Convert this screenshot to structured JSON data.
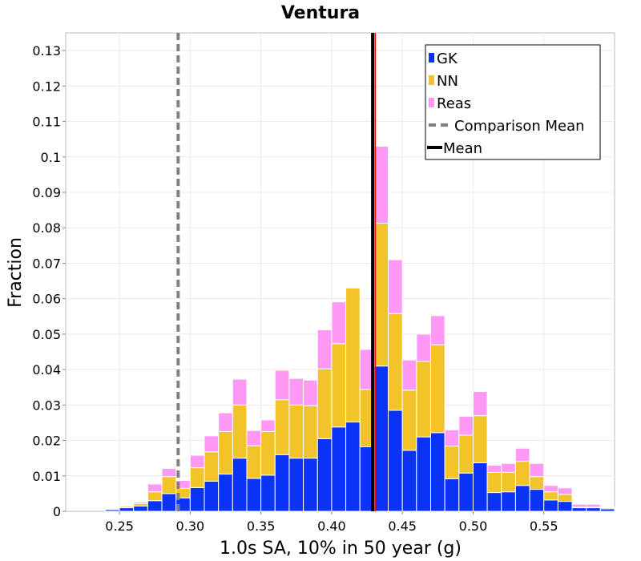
{
  "chart_data": {
    "type": "bar",
    "stacked": true,
    "title": "Ventura",
    "xlabel": "1.0s SA, 10% in 50 year (g)",
    "ylabel": "Fraction",
    "xlim": [
      0.212,
      0.6
    ],
    "ylim": [
      0,
      0.135
    ],
    "bin_width": 0.01,
    "x_ticks": [
      "0.25",
      "0.30",
      "0.35",
      "0.40",
      "0.45",
      "0.50",
      "0.55"
    ],
    "y_ticks": [
      "0",
      "0.01",
      "0.02",
      "0.03",
      "0.04",
      "0.05",
      "0.06",
      "0.07",
      "0.08",
      "0.09",
      "0.1",
      "0.11",
      "0.12",
      "0.13"
    ],
    "grid": true,
    "legend_position": "top-right",
    "x": [
      0.245,
      0.255,
      0.265,
      0.275,
      0.285,
      0.295,
      0.305,
      0.315,
      0.325,
      0.335,
      0.345,
      0.355,
      0.365,
      0.375,
      0.385,
      0.395,
      0.405,
      0.415,
      0.425,
      0.435,
      0.445,
      0.455,
      0.465,
      0.475,
      0.485,
      0.495,
      0.505,
      0.515,
      0.525,
      0.535,
      0.545,
      0.555,
      0.565,
      0.575,
      0.585,
      0.595
    ],
    "series": [
      {
        "name": "GK",
        "color": "#0a33f5",
        "values": [
          0.0005,
          0.001,
          0.0015,
          0.003,
          0.005,
          0.0038,
          0.0067,
          0.0085,
          0.0105,
          0.015,
          0.0093,
          0.0102,
          0.016,
          0.015,
          0.015,
          0.0205,
          0.0238,
          0.0252,
          0.0182,
          0.041,
          0.0285,
          0.0172,
          0.021,
          0.0222,
          0.0092,
          0.0108,
          0.0137,
          0.0053,
          0.0055,
          0.0073,
          0.0062,
          0.0032,
          0.0028,
          0.001,
          0.001,
          0.0007
        ]
      },
      {
        "name": "NN",
        "color": "#f2c42a",
        "values": [
          0.0002,
          0.0004,
          0.0007,
          0.0025,
          0.0048,
          0.0027,
          0.0056,
          0.0083,
          0.012,
          0.015,
          0.0092,
          0.0123,
          0.0155,
          0.015,
          0.0148,
          0.0197,
          0.0235,
          0.0378,
          0.0162,
          0.0403,
          0.0273,
          0.017,
          0.0213,
          0.0248,
          0.0092,
          0.0107,
          0.0133,
          0.0057,
          0.0055,
          0.0068,
          0.0036,
          0.0023,
          0.002,
          0.0002,
          0.0002,
          0.0003
        ]
      },
      {
        "name": "Reas",
        "color": "#ff99f5",
        "values": [
          0.0001,
          0.0002,
          0.0004,
          0.0022,
          0.0023,
          0.0022,
          0.0035,
          0.0045,
          0.0053,
          0.0073,
          0.0043,
          0.0033,
          0.0083,
          0.0075,
          0.0072,
          0.011,
          0.0118,
          0.0,
          0.0113,
          0.0217,
          0.0152,
          0.0085,
          0.0077,
          0.0082,
          0.0046,
          0.0053,
          0.0068,
          0.002,
          0.0025,
          0.0037,
          0.0037,
          0.0018,
          0.0018,
          0.0008,
          0.0008,
          0.0002
        ]
      }
    ],
    "lines": [
      {
        "name": "Comparison Mean",
        "x": 0.2915,
        "color": "#808080",
        "style": "dashed"
      },
      {
        "name": "Mean",
        "x": 0.429,
        "color": "#000000",
        "style": "solid"
      }
    ],
    "marker_band": {
      "x_start": 0.43,
      "x_end": 0.43,
      "color": "#ff0000"
    }
  }
}
